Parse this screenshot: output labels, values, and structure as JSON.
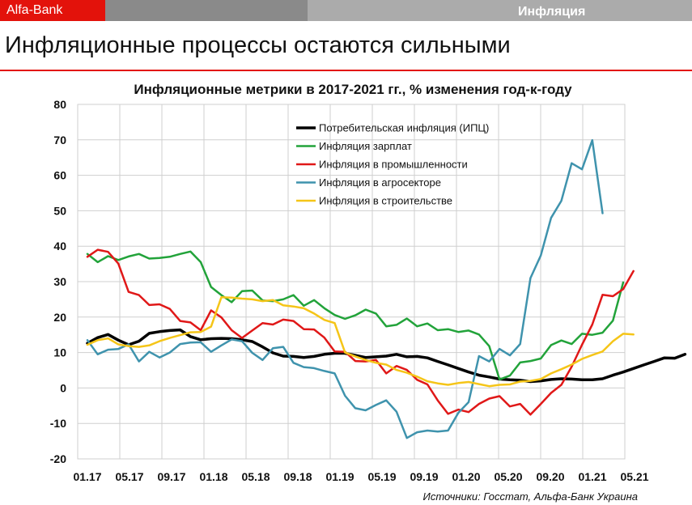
{
  "header": {
    "brand": "Alfa-Bank",
    "section": "Инфляция"
  },
  "page_title": "Инфляционные процессы остаются сильными",
  "source_label": "Источники: Госстат, Альфа-Банк Украина",
  "colors": {
    "brand": "#e3120b",
    "cpi": "#000000",
    "wages": "#22a33a",
    "industry": "#e01818",
    "agri": "#3f93ad",
    "construction": "#f5c518"
  },
  "chart_data": {
    "type": "line",
    "title": "Инфляционные метрики в 2017-2021 гг., % изменения год-к-году",
    "x_ticks": [
      "01.17",
      "05.17",
      "09.17",
      "01.18",
      "05.18",
      "09.18",
      "01.19",
      "05.19",
      "09.19",
      "01.20",
      "05.20",
      "09.20",
      "01.21",
      "05.21"
    ],
    "y_ticks": [
      "80",
      "70",
      "60",
      "50",
      "40",
      "30",
      "20",
      "10",
      "0",
      "-10",
      "-20"
    ],
    "ylim": [
      -20,
      80
    ],
    "grid": true,
    "legend_position": "top-right",
    "series": [
      {
        "name": "Потребительская инфляция (ИПЦ)",
        "color": "#000000",
        "width": 3.5,
        "values": [
          12.6,
          14.2,
          15.1,
          13.5,
          12.2,
          13.2,
          15.4,
          15.9,
          16.2,
          16.4,
          14.5,
          13.6,
          13.9,
          14.0,
          13.9,
          13.6,
          13.1,
          11.6,
          9.9,
          9.0,
          8.9,
          8.6,
          8.9,
          9.5,
          9.8,
          9.8,
          9.2,
          8.6,
          8.8,
          9.0,
          9.5,
          8.8,
          8.9,
          8.5,
          7.5,
          6.5,
          5.5,
          4.5,
          3.6,
          3.1,
          2.5,
          2.3,
          2.2,
          1.8,
          2.0,
          2.4,
          2.6,
          2.5,
          2.3,
          2.3,
          2.6,
          3.6,
          4.5,
          5.5,
          6.5,
          7.5,
          8.5,
          8.4,
          9.5
        ]
      },
      {
        "name": "Инфляция зарплат",
        "color": "#22a33a",
        "width": 2.5,
        "values": [
          37.8,
          35.5,
          37.2,
          36.1,
          37.1,
          37.8,
          36.5,
          36.7,
          37.0,
          37.8,
          38.5,
          35.5,
          28.5,
          26.2,
          24.2,
          27.3,
          27.5,
          24.7,
          24.5,
          25.0,
          26.2,
          23.2,
          24.8,
          22.5,
          20.6,
          19.5,
          20.5,
          22.1,
          21.0,
          17.4,
          17.8,
          19.6,
          17.4,
          18.2,
          16.3,
          16.6,
          15.8,
          16.2,
          15.1,
          11.8,
          2.4,
          3.5,
          7.2,
          7.6,
          8.3,
          12.1,
          13.4,
          12.4,
          15.3,
          15.0,
          15.6,
          19.0,
          29.8
        ]
      },
      {
        "name": "Инфляция в промышленности",
        "color": "#e01818",
        "width": 2.5,
        "values": [
          37.0,
          39.0,
          38.4,
          35.1,
          27.1,
          26.2,
          23.4,
          23.6,
          22.3,
          18.9,
          18.5,
          16.3,
          21.9,
          19.9,
          16.3,
          14.1,
          16.2,
          18.3,
          17.9,
          19.3,
          18.9,
          16.6,
          16.5,
          14.2,
          10.3,
          10.2,
          7.6,
          7.5,
          7.9,
          4.1,
          6.2,
          5.1,
          2.3,
          1.0,
          -3.5,
          -7.3,
          -6.1,
          -6.8,
          -4.5,
          -3.0,
          -2.3,
          -5.2,
          -4.5,
          -7.5,
          -4.5,
          -1.4,
          0.9,
          6.0,
          12.2,
          17.9,
          26.3,
          25.9,
          27.9,
          33.0
        ]
      },
      {
        "name": "Инфляция в агросекторе",
        "color": "#3f93ad",
        "width": 2.5,
        "values": [
          13.5,
          9.5,
          10.8,
          11.0,
          12.3,
          7.5,
          10.2,
          8.6,
          10.0,
          12.4,
          12.8,
          12.9,
          10.2,
          12.0,
          13.7,
          13.2,
          9.9,
          7.9,
          11.2,
          11.6,
          7.1,
          5.9,
          5.6,
          4.8,
          4.1,
          -2.2,
          -5.7,
          -6.3,
          -4.8,
          -3.5,
          -6.7,
          -14.1,
          -12.5,
          -12.0,
          -12.3,
          -12.0,
          -7.0,
          -4.0,
          9.0,
          7.5,
          11.0,
          9.2,
          12.4,
          31.0,
          37.4,
          48.0,
          52.8,
          63.4,
          61.7,
          69.9,
          49.3
        ]
      },
      {
        "name": "Инфляция в строительстве",
        "color": "#f5c518",
        "width": 2.5,
        "values": [
          12.2,
          13.5,
          14.0,
          12.3,
          11.8,
          11.6,
          12.0,
          13.2,
          14.1,
          14.9,
          15.7,
          15.8,
          17.3,
          25.6,
          25.5,
          25.2,
          25.0,
          24.5,
          24.8,
          23.3,
          23.0,
          22.5,
          21.0,
          19.2,
          18.3,
          10.0,
          8.9,
          7.9,
          7.1,
          6.6,
          5.1,
          4.3,
          3.2,
          1.9,
          1.3,
          0.9,
          1.4,
          1.7,
          1.1,
          0.5,
          0.9,
          1.0,
          1.8,
          2.0,
          2.5,
          4.1,
          5.3,
          6.6,
          8.2,
          9.3,
          10.3,
          13.2,
          15.3,
          15.1
        ]
      }
    ]
  }
}
